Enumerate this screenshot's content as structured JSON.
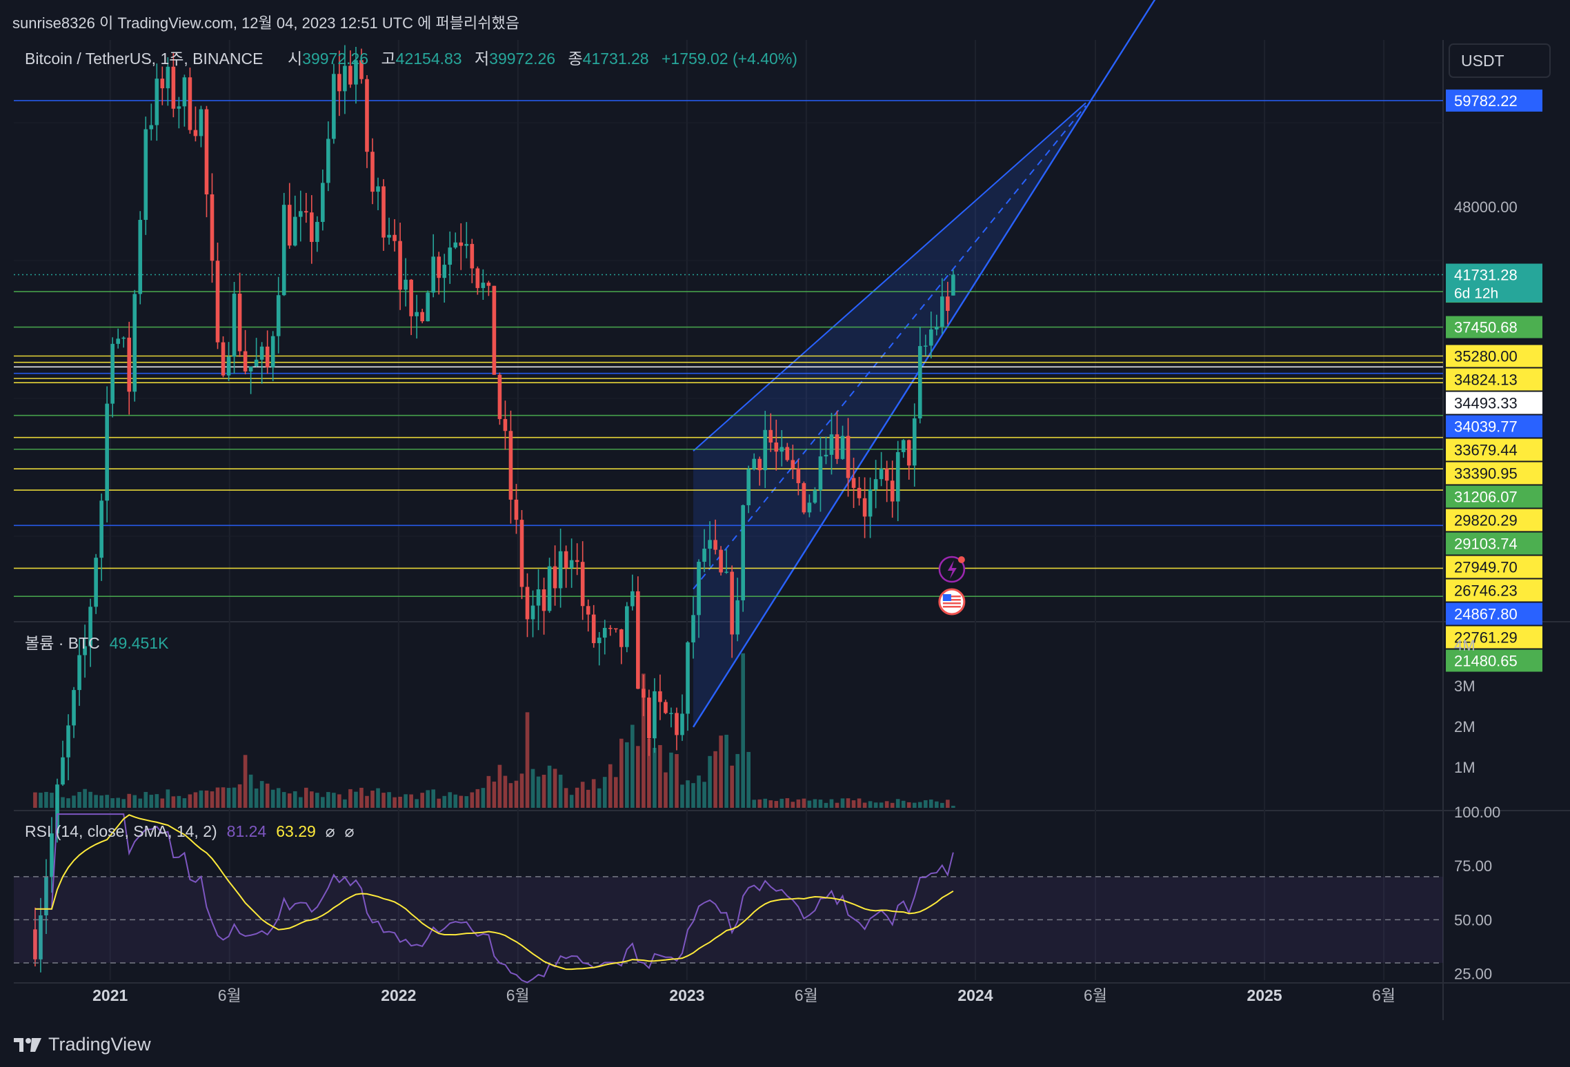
{
  "publication": "sunrise8326 이 TradingView.com, 12월 04, 2023 12:51 UTC 에 퍼블리쉬했음",
  "footer_logo": "TradingView",
  "colors": {
    "background": "#131722",
    "up": "#26a69a",
    "down": "#ef5350",
    "channel": "#2962ff",
    "yellow": "#ffeb3b",
    "green": "#4caf50",
    "blue": "#2962ff",
    "rsi": "#7e57c2",
    "rsi_ma": "#ffeb3b"
  },
  "legend": {
    "symbol": "Bitcoin / TetherUS, 1주, BINANCE",
    "open_label": "시",
    "open": "39972.26",
    "high_label": "고",
    "high": "42154.83",
    "low_label": "저",
    "low": "39972.26",
    "close_label": "종",
    "close": "41731.28",
    "change": "+1759.02 (+4.40%)"
  },
  "currency_button": "USDT",
  "volume_legend": {
    "label": "볼륨 · BTC",
    "value": "49.451K"
  },
  "rsi_legend": {
    "label": "RSI (14, close, SMA, 14, 2)",
    "rsi": "81.24",
    "ma": "63.29",
    "sym1": "⌀",
    "sym2": "⌀"
  },
  "chart_data": [
    {
      "type": "candlestick",
      "title": "Bitcoin / TetherUS, 1주, BINANCE",
      "interval": "1W",
      "y_range": [
        20500,
        64000
      ],
      "y_ticks": [
        "48000.00"
      ],
      "x_ticks": [
        "2021",
        "6월",
        "2022",
        "6월",
        "2023",
        "6월",
        "2024",
        "6월",
        "2025",
        "6월"
      ],
      "x_tick_dates": [
        "2021-01-01",
        "2021-06-01",
        "2022-01-01",
        "2022-06-01",
        "2023-01-01",
        "2023-06-01",
        "2024-01-01",
        "2024-06-01",
        "2025-01-01",
        "2025-06-01"
      ],
      "last_price": {
        "value": "41731.28",
        "countdown": "6d 12h"
      },
      "closes": [
        {
          "date": "2020-09-28",
          "close": 10800
        },
        {
          "date": "2020-10-19",
          "close": 13100
        },
        {
          "date": "2020-11-09",
          "close": 16100
        },
        {
          "date": "2020-11-30",
          "close": 19200
        },
        {
          "date": "2020-12-21",
          "close": 26400
        },
        {
          "date": "2021-01-04",
          "close": 38200
        },
        {
          "date": "2021-01-25",
          "close": 33400
        },
        {
          "date": "2021-02-15",
          "close": 57500
        },
        {
          "date": "2021-03-08",
          "close": 61200
        },
        {
          "date": "2021-04-05",
          "close": 60000
        },
        {
          "date": "2021-04-26",
          "close": 57800
        },
        {
          "date": "2021-05-17",
          "close": 34600
        },
        {
          "date": "2021-06-07",
          "close": 39000
        },
        {
          "date": "2021-06-21",
          "close": 34700
        },
        {
          "date": "2021-07-19",
          "close": 34200
        },
        {
          "date": "2021-08-09",
          "close": 47000
        },
        {
          "date": "2021-09-06",
          "close": 45000
        },
        {
          "date": "2021-09-27",
          "close": 48200
        },
        {
          "date": "2021-10-11",
          "close": 61500
        },
        {
          "date": "2021-11-08",
          "close": 65000
        },
        {
          "date": "2021-11-29",
          "close": 49400
        },
        {
          "date": "2021-12-27",
          "close": 46200
        },
        {
          "date": "2022-01-17",
          "close": 36300
        },
        {
          "date": "2022-02-07",
          "close": 42200
        },
        {
          "date": "2022-03-28",
          "close": 46400
        },
        {
          "date": "2022-04-25",
          "close": 38500
        },
        {
          "date": "2022-05-09",
          "close": 31300
        },
        {
          "date": "2022-06-13",
          "close": 20500
        },
        {
          "date": "2022-07-04",
          "close": 21000
        },
        {
          "date": "2022-08-08",
          "close": 24300
        },
        {
          "date": "2022-08-29",
          "close": 19800
        },
        {
          "date": "2022-10-03",
          "close": 19100
        },
        {
          "date": "2022-10-24",
          "close": 20600
        },
        {
          "date": "2022-11-07",
          "close": 16800
        },
        {
          "date": "2022-12-26",
          "close": 16600
        },
        {
          "date": "2023-01-09",
          "close": 20900
        },
        {
          "date": "2023-01-23",
          "close": 23700
        },
        {
          "date": "2023-03-06",
          "close": 20400
        },
        {
          "date": "2023-03-13",
          "close": 26900
        },
        {
          "date": "2023-04-10",
          "close": 30400
        },
        {
          "date": "2023-05-01",
          "close": 27700
        },
        {
          "date": "2023-06-12",
          "close": 26300
        },
        {
          "date": "2023-06-19",
          "close": 30500
        },
        {
          "date": "2023-07-10",
          "close": 30300
        },
        {
          "date": "2023-08-14",
          "close": 26100
        },
        {
          "date": "2023-09-11",
          "close": 26600
        },
        {
          "date": "2023-10-16",
          "close": 29900
        },
        {
          "date": "2023-10-23",
          "close": 34500
        },
        {
          "date": "2023-11-06",
          "close": 37100
        },
        {
          "date": "2023-11-27",
          "close": 39900
        },
        {
          "date": "2023-12-04",
          "close": 41731.28
        }
      ],
      "horizontal_lines": [
        {
          "value": 59782.22,
          "label": "59782.22",
          "color": "blue"
        },
        {
          "value": 40296.41,
          "label": "40296.41",
          "color": "green"
        },
        {
          "value": 37450.68,
          "label": "37450.68",
          "color": "green"
        },
        {
          "value": 35280.0,
          "label": "35280.00",
          "color": "yellow"
        },
        {
          "value": 34824.13,
          "label": "34824.13",
          "color": "yellow"
        },
        {
          "value": 34493.33,
          "label": "34493.33",
          "color": "white"
        },
        {
          "value": 34039.77,
          "label": "34039.77",
          "color": "blue"
        },
        {
          "value": 33679.44,
          "label": "33679.44",
          "color": "yellow"
        },
        {
          "value": 33390.95,
          "label": "33390.95",
          "color": "yellow"
        },
        {
          "value": 31206.07,
          "label": "31206.07",
          "color": "green"
        },
        {
          "value": 29820.29,
          "label": "29820.29",
          "color": "yellow"
        },
        {
          "value": 29103.74,
          "label": "29103.74",
          "color": "green"
        },
        {
          "value": 27949.7,
          "label": "27949.70",
          "color": "yellow"
        },
        {
          "value": 26746.23,
          "label": "26746.23",
          "color": "yellow"
        },
        {
          "value": 24867.8,
          "label": "24867.80",
          "color": "blue"
        },
        {
          "value": 22761.29,
          "label": "22761.29",
          "color": "yellow"
        },
        {
          "value": 21480.65,
          "label": "21480.65",
          "color": "green"
        }
      ],
      "channel": {
        "type": "parallel_channel",
        "from_date": "2023-01-09",
        "to_date": "2023-12-04",
        "color": "blue"
      }
    },
    {
      "type": "bar",
      "title": "볼륨 · BTC",
      "last_value": "49.451K",
      "y_ticks": [
        "4M",
        "3M",
        "2M",
        "1M"
      ],
      "y_range": [
        0,
        4000000
      ],
      "peaks": [
        {
          "date": "2021-06-21",
          "value": 1300000
        },
        {
          "date": "2022-06-13",
          "value": 2350000
        },
        {
          "date": "2022-11-07",
          "value": 3300000
        },
        {
          "date": "2023-03-13",
          "value": 3800000
        },
        {
          "date": "2023-12-04",
          "value": 49451
        }
      ]
    },
    {
      "type": "line",
      "title": "RSI (14, close, SMA, 14, 2)",
      "series": [
        {
          "name": "RSI",
          "last": 81.24
        },
        {
          "name": "SMA",
          "last": 63.29
        }
      ],
      "y_ticks": [
        "100.00",
        "75.00",
        "50.00",
        "25.00"
      ],
      "y_range": [
        22,
        100
      ],
      "bands": [
        70,
        50,
        30
      ]
    }
  ]
}
